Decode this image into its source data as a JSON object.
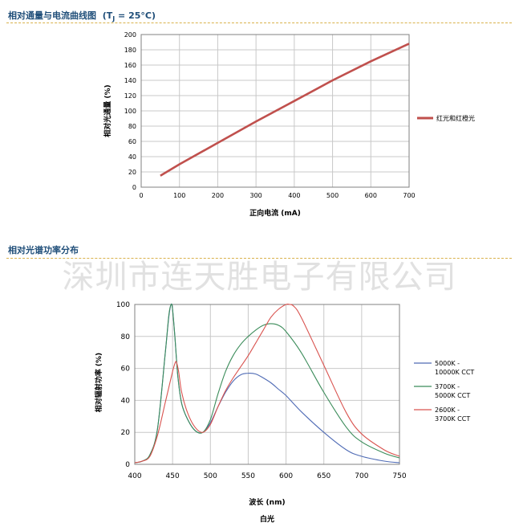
{
  "section1": {
    "title": "相对通量与电流曲线图",
    "title_suffix": " = 25°C)",
    "title_t": "(T",
    "title_sub": "J"
  },
  "section2": {
    "title": "相对光谱功率分布"
  },
  "watermark": "深圳市连天胜电子有限公司",
  "chart_data": [
    {
      "type": "line",
      "title": "相对通量与电流曲线图 (TJ = 25°C)",
      "xlabel": "正向电流 (mA)",
      "ylabel": "相对光通量 (%)",
      "xlim": [
        0,
        700
      ],
      "ylim": [
        0,
        200
      ],
      "xticks": [
        0,
        100,
        200,
        300,
        400,
        500,
        600,
        700
      ],
      "yticks": [
        0,
        20,
        40,
        60,
        80,
        100,
        120,
        140,
        160,
        180,
        200
      ],
      "grid": true,
      "legend_position": "right",
      "series": [
        {
          "name": "红光和红橙光",
          "color": "#c0504d",
          "x": [
            50,
            100,
            200,
            300,
            400,
            500,
            600,
            700
          ],
          "y": [
            15,
            30,
            58,
            86,
            113,
            140,
            165,
            188
          ]
        }
      ]
    },
    {
      "type": "line",
      "title": "",
      "xlabel": "波长 (nm)",
      "ylabel": "相对辐射功率 (%)",
      "caption": "白光",
      "xlim": [
        400,
        750
      ],
      "ylim": [
        0,
        100
      ],
      "xticks": [
        400,
        450,
        500,
        550,
        600,
        650,
        700,
        750
      ],
      "yticks": [
        0,
        20,
        40,
        60,
        80,
        100
      ],
      "grid": true,
      "legend_position": "right",
      "series": [
        {
          "name": "5000K - 10000K CCT",
          "legend_lines": [
            "5000K -",
            "10000K CCT"
          ],
          "color": "#4f6bb5",
          "x": [
            400,
            410,
            420,
            430,
            440,
            445,
            448,
            450,
            453,
            457,
            462,
            470,
            480,
            490,
            500,
            510,
            520,
            530,
            540,
            550,
            560,
            570,
            580,
            590,
            600,
            620,
            650,
            680,
            700,
            730,
            750
          ],
          "y": [
            1,
            2,
            6,
            22,
            68,
            92,
            100,
            97,
            80,
            55,
            38,
            28,
            21,
            20,
            26,
            36,
            45,
            52,
            56,
            57,
            56.5,
            54,
            51,
            47,
            43,
            33,
            20,
            9,
            5,
            2,
            1
          ]
        },
        {
          "name": "3700K - 5000K CCT",
          "legend_lines": [
            "3700K -",
            "5000K CCT"
          ],
          "color": "#3b8c5a",
          "x": [
            400,
            410,
            420,
            430,
            440,
            445,
            448,
            450,
            453,
            457,
            462,
            470,
            480,
            490,
            500,
            510,
            520,
            530,
            540,
            550,
            560,
            570,
            580,
            590,
            600,
            620,
            650,
            680,
            700,
            730,
            750
          ],
          "y": [
            1,
            2,
            6,
            22,
            68,
            93,
            100,
            97,
            80,
            55,
            38,
            28,
            21,
            20,
            28,
            44,
            58,
            68,
            75,
            80,
            84,
            87,
            88,
            87,
            83,
            70,
            45,
            23,
            14,
            7,
            4
          ]
        },
        {
          "name": "2600K - 3700K CCT",
          "legend_lines": [
            "2600K -",
            "3700K CCT"
          ],
          "color": "#d9534f",
          "x": [
            400,
            410,
            420,
            430,
            440,
            445,
            450,
            453,
            455,
            458,
            462,
            470,
            480,
            490,
            500,
            510,
            520,
            530,
            540,
            550,
            560,
            570,
            580,
            590,
            600,
            605,
            610,
            620,
            650,
            680,
            700,
            730,
            750
          ],
          "y": [
            1,
            2,
            5,
            18,
            38,
            48,
            58,
            63,
            64,
            58,
            45,
            32,
            23,
            20,
            25,
            36,
            46,
            54,
            61,
            68,
            76,
            84,
            92,
            97,
            100,
            100,
            99,
            92,
            62,
            32,
            19,
            9,
            5
          ]
        }
      ]
    }
  ]
}
